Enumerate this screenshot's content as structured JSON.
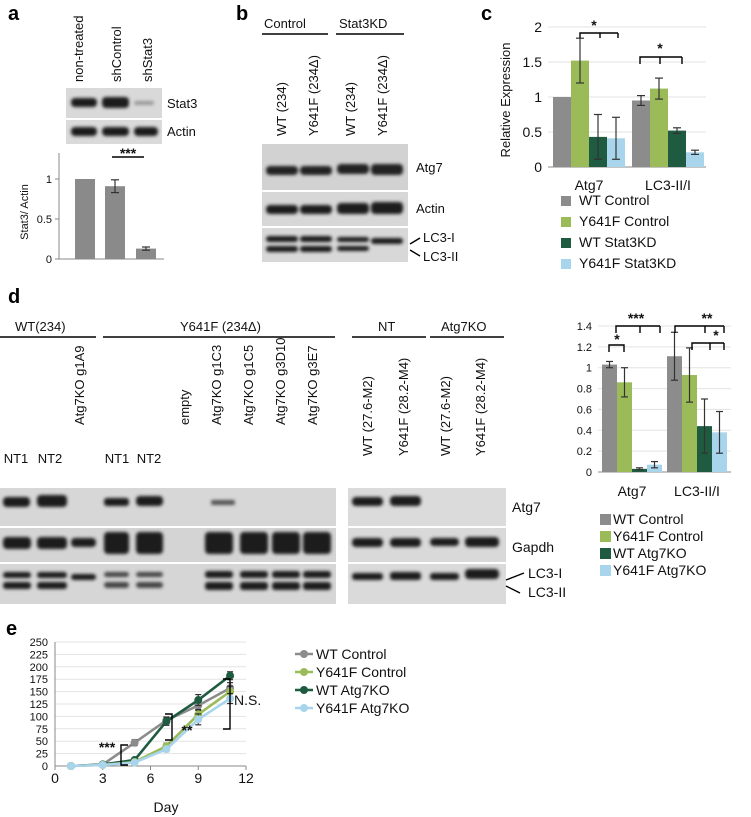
{
  "colors": {
    "wt_control": "#8c8c8c",
    "y641f_control": "#9bbb59",
    "wt_kd": "#1e5b40",
    "y641f_kd": "#a8d5ec"
  },
  "panel_labels": {
    "a": "a",
    "b": "b",
    "c": "c",
    "d": "d",
    "e": "e"
  },
  "panel_a": {
    "lanes": [
      "non-treated",
      "shControl",
      "shStat3"
    ],
    "blot_labels": [
      "Stat3",
      "Actin"
    ],
    "chart_ylabel": "Stat3/ Actin",
    "yticks": [
      "0",
      "0.5",
      "1"
    ],
    "sig": "***"
  },
  "panel_b": {
    "groups": [
      "Control",
      "Stat3KD"
    ],
    "lanes": [
      "WT (234)",
      "Y641F (234Δ)",
      "WT (234)",
      "Y641F (234Δ)"
    ],
    "blot_labels": [
      "Atg7",
      "Actin",
      "LC3-I",
      "LC3-II"
    ]
  },
  "panel_c": {
    "ylabel": "Relative Expression",
    "yticks": [
      "0",
      "0.5",
      "1",
      "1.5",
      "2"
    ],
    "categories": [
      "Atg7",
      "LC3-II/I"
    ],
    "legend": [
      "WT Control",
      "Y641F Control",
      "WT Stat3KD",
      "Y641F Stat3KD"
    ],
    "sig": [
      "*",
      "*"
    ]
  },
  "panel_d": {
    "groups": [
      "WT(234)",
      "Y641F (234Δ)",
      "NT",
      "Atg7KO"
    ],
    "lanes_left": [
      "NT1",
      "NT2",
      "Atg7KO g1A9",
      "NT1",
      "NT2",
      "empty",
      "Atg7KO g1C3",
      "Atg7KO g1C5",
      "Atg7KO g3D10",
      "Atg7KO g3E7"
    ],
    "lanes_right": [
      "WT (27.6-M2)",
      "Y641F (28.2-M4)",
      "WT (27.6-M2)",
      "Y641F (28.2-M4)"
    ],
    "blot_labels": [
      "Atg7",
      "Gapdh",
      "LC3-I",
      "LC3-II"
    ],
    "chart_yticks": [
      "0",
      "0.2",
      "0.4",
      "0.6",
      "0.8",
      "1",
      "1.2",
      "1.4"
    ],
    "categories": [
      "Atg7",
      "LC3-II/I"
    ],
    "legend": [
      "WT Control",
      "Y641F Control",
      "WT Atg7KO",
      "Y641F Atg7KO"
    ],
    "sig": [
      "*",
      "***",
      "**",
      "*"
    ]
  },
  "panel_e": {
    "xlabel": "Day",
    "xticks": [
      "0",
      "3",
      "6",
      "9",
      "12"
    ],
    "yticks": [
      "0",
      "25",
      "50",
      "75",
      "100",
      "125",
      "150",
      "175",
      "200",
      "225",
      "250"
    ],
    "legend": [
      "WT Control",
      "Y641F Control",
      "WT Atg7KO",
      "Y641F Atg7KO"
    ],
    "annotations": [
      "***",
      "**",
      "N.S."
    ]
  },
  "chart_data": [
    {
      "type": "bar",
      "panel": "a",
      "categories": [
        "non-treated",
        "shControl",
        "shStat3"
      ],
      "values": [
        1.0,
        0.91,
        0.13
      ],
      "errors": [
        0,
        0.08,
        0.02
      ],
      "title": "",
      "xlabel": "",
      "ylabel": "Stat3/ Actin",
      "ylim": [
        0,
        1.25
      ],
      "grid": false,
      "annotations": [
        {
          "text": "***",
          "between": [
            "shControl",
            "shStat3"
          ]
        }
      ]
    },
    {
      "type": "bar",
      "panel": "c",
      "categories": [
        "Atg7",
        "LC3-II/I"
      ],
      "series": [
        {
          "name": "WT Control",
          "values": [
            1.0,
            0.95
          ],
          "errors": [
            0,
            0.07
          ]
        },
        {
          "name": "Y641F Control",
          "values": [
            1.52,
            1.12
          ],
          "errors": [
            0.32,
            0.15
          ]
        },
        {
          "name": "WT Stat3KD",
          "values": [
            0.43,
            0.52
          ],
          "errors": [
            0.32,
            0.04
          ]
        },
        {
          "name": "Y641F Stat3KD",
          "values": [
            0.41,
            0.21
          ],
          "errors": [
            0.3,
            0.03
          ]
        }
      ],
      "title": "",
      "ylabel": "Relative Expression",
      "ylim": [
        0,
        2
      ],
      "grid": true,
      "legend_position": "bottom"
    },
    {
      "type": "bar",
      "panel": "d",
      "categories": [
        "Atg7",
        "LC3-II/I"
      ],
      "series": [
        {
          "name": "WT Control",
          "values": [
            1.03,
            1.11
          ],
          "errors": [
            0.03,
            0.23
          ]
        },
        {
          "name": "Y641F Control",
          "values": [
            0.86,
            0.93
          ],
          "errors": [
            0.14,
            0.26
          ]
        },
        {
          "name": "WT Atg7KO",
          "values": [
            0.03,
            0.44
          ],
          "errors": [
            0.01,
            0.26
          ]
        },
        {
          "name": "Y641F Atg7KO",
          "values": [
            0.07,
            0.38
          ],
          "errors": [
            0.03,
            0.2
          ]
        }
      ],
      "title": "",
      "ylabel": "",
      "ylim": [
        0,
        1.4
      ],
      "grid": true,
      "legend_position": "bottom"
    },
    {
      "type": "line",
      "panel": "e",
      "x": [
        1,
        3,
        5,
        7,
        9,
        11
      ],
      "series": [
        {
          "name": "WT Control",
          "values": [
            0,
            3,
            47,
            92,
            122,
            157
          ],
          "errors": [
            1,
            1,
            6,
            7,
            10,
            11
          ]
        },
        {
          "name": "Y641F Control",
          "values": [
            0,
            2,
            8,
            40,
            104,
            150
          ],
          "errors": [
            1,
            1,
            2,
            6,
            10,
            11
          ]
        },
        {
          "name": "WT Atg7KO",
          "values": [
            0,
            3,
            12,
            90,
            133,
            182
          ],
          "errors": [
            1,
            1,
            3,
            8,
            11,
            8
          ]
        },
        {
          "name": "Y641F Atg7KO",
          "values": [
            0,
            2,
            7,
            34,
            94,
            136
          ],
          "errors": [
            1,
            1,
            2,
            5,
            11,
            10
          ]
        }
      ],
      "title": "",
      "xlabel": "Day",
      "ylabel": "",
      "xlim": [
        0,
        12
      ],
      "ylim": [
        0,
        250
      ],
      "grid": true,
      "legend_position": "right"
    }
  ]
}
